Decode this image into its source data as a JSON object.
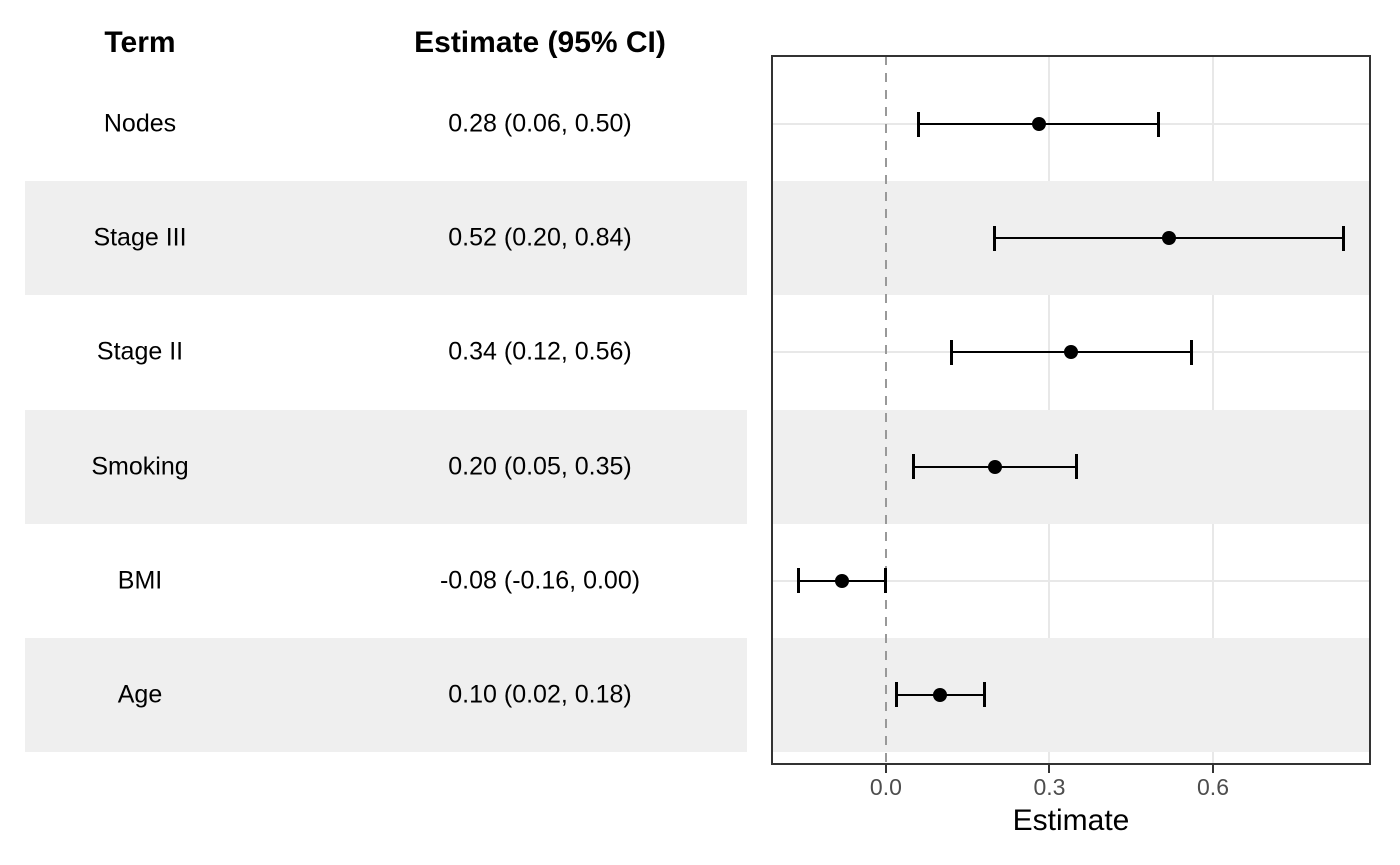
{
  "chart_data": {
    "type": "scatter",
    "subtype": "forest_plot",
    "columns": {
      "term": "Term",
      "estimate": "Estimate (95% CI)"
    },
    "rows": [
      {
        "term": "Nodes",
        "estimate_label": "0.28 (0.06, 0.50)",
        "estimate": 0.28,
        "ci_low": 0.06,
        "ci_high": 0.5
      },
      {
        "term": "Stage III",
        "estimate_label": "0.52 (0.20, 0.84)",
        "estimate": 0.52,
        "ci_low": 0.2,
        "ci_high": 0.84
      },
      {
        "term": "Stage II",
        "estimate_label": "0.34 (0.12, 0.56)",
        "estimate": 0.34,
        "ci_low": 0.12,
        "ci_high": 0.56
      },
      {
        "term": "Smoking",
        "estimate_label": "0.20 (0.05, 0.35)",
        "estimate": 0.2,
        "ci_low": 0.05,
        "ci_high": 0.35
      },
      {
        "term": "BMI",
        "estimate_label": "-0.08 (-0.16, 0.00)",
        "estimate": -0.08,
        "ci_low": -0.16,
        "ci_high": 0.0
      },
      {
        "term": "Age",
        "estimate_label": "0.10 (0.02, 0.18)",
        "estimate": 0.1,
        "ci_low": 0.02,
        "ci_high": 0.18
      }
    ],
    "xlabel": "Estimate",
    "x_ticks": [
      0.0,
      0.3,
      0.6
    ],
    "x_tick_labels": [
      "0.0",
      "0.3",
      "0.6"
    ],
    "xlim": [
      -0.209,
      0.888
    ],
    "reference_line": 0.0,
    "grid": "major-only",
    "legend": "none",
    "alternating_row_shading": true,
    "colors": {
      "point": "#000000",
      "ci_line": "#000000",
      "stripe": "#EFEFEF",
      "gridline": "#E8E8E8",
      "panel_border": "#333333",
      "reference_line": "#999999",
      "tick_label": "#4D4D4D",
      "text": "#000000",
      "background": "#FFFFFF"
    }
  }
}
